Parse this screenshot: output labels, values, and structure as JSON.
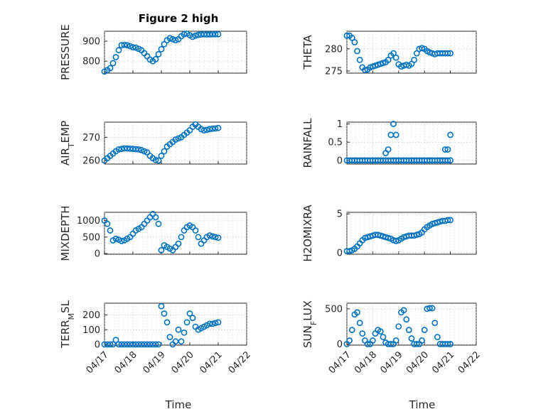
{
  "figure": {
    "title": "Figure 2 high",
    "xlabel": "Time",
    "marker_color": "#0072bd"
  },
  "chart_data": [
    {
      "name": "pressure",
      "type": "scatter",
      "ylabel": "PRESSURE",
      "ylim": [
        740,
        950
      ],
      "yticks": [
        800,
        900
      ],
      "xlim": [
        0,
        5
      ],
      "xticks": [
        "04/17",
        "04/18",
        "04/19",
        "04/20",
        "04/21",
        "04/22"
      ],
      "x": [
        0,
        0.1,
        0.2,
        0.3,
        0.4,
        0.5,
        0.6,
        0.7,
        0.8,
        0.9,
        1.0,
        1.1,
        1.2,
        1.3,
        1.4,
        1.5,
        1.6,
        1.7,
        1.8,
        1.9,
        2.0,
        2.1,
        2.2,
        2.3,
        2.4,
        2.5,
        2.6,
        2.7,
        2.8,
        2.9,
        3.0,
        3.1,
        3.2,
        3.3,
        3.4,
        3.5,
        3.6,
        3.7,
        3.8,
        3.9,
        4.0
      ],
      "y": [
        748,
        755,
        765,
        790,
        820,
        855,
        880,
        882,
        880,
        875,
        870,
        868,
        862,
        855,
        840,
        825,
        808,
        800,
        810,
        835,
        860,
        885,
        905,
        915,
        910,
        905,
        910,
        925,
        935,
        938,
        930,
        922,
        928,
        932,
        934,
        935,
        934,
        934,
        935,
        935,
        935
      ]
    },
    {
      "name": "theta",
      "type": "scatter",
      "ylabel": "THETA",
      "ylim": [
        274.5,
        284
      ],
      "yticks": [
        275,
        280
      ],
      "xlim": [
        0,
        5
      ],
      "xticks": [
        "04/17",
        "04/18",
        "04/19",
        "04/20",
        "04/21",
        "04/22"
      ],
      "x": [
        0,
        0.1,
        0.2,
        0.3,
        0.4,
        0.5,
        0.6,
        0.7,
        0.8,
        0.9,
        1.0,
        1.1,
        1.2,
        1.3,
        1.4,
        1.5,
        1.6,
        1.7,
        1.8,
        1.9,
        2.0,
        2.1,
        2.2,
        2.3,
        2.4,
        2.5,
        2.6,
        2.7,
        2.8,
        2.9,
        3.0,
        3.1,
        3.2,
        3.3,
        3.4,
        3.5,
        3.6,
        3.7,
        3.8,
        3.9,
        4.0
      ],
      "y": [
        283,
        283,
        282.5,
        281.5,
        279.5,
        277.5,
        275.8,
        275.2,
        275.3,
        275.8,
        276,
        276.2,
        276.4,
        276.6,
        276.8,
        277,
        277.5,
        278.5,
        279,
        278,
        276.5,
        276,
        276.2,
        276.4,
        276.2,
        276.6,
        277.5,
        279,
        280,
        280.2,
        280,
        279.5,
        279.2,
        279,
        278.8,
        279,
        279,
        279,
        279,
        279,
        279
      ]
    },
    {
      "name": "air_temp",
      "type": "scatter",
      "ylabel": "AIR_TEMP",
      "ylim": [
        258.5,
        276.5
      ],
      "yticks": [
        260,
        270
      ],
      "xlim": [
        0,
        5
      ],
      "xticks": [
        "04/17",
        "04/18",
        "04/19",
        "04/20",
        "04/21",
        "04/22"
      ],
      "x": [
        0,
        0.1,
        0.2,
        0.3,
        0.4,
        0.5,
        0.6,
        0.7,
        0.8,
        0.9,
        1.0,
        1.1,
        1.2,
        1.3,
        1.4,
        1.5,
        1.6,
        1.7,
        1.8,
        1.9,
        2.0,
        2.1,
        2.2,
        2.3,
        2.4,
        2.5,
        2.6,
        2.7,
        2.8,
        2.9,
        3.0,
        3.1,
        3.2,
        3.3,
        3.4,
        3.5,
        3.6,
        3.7,
        3.8,
        3.9,
        4.0
      ],
      "y": [
        260,
        261,
        262,
        263,
        264,
        264.8,
        265,
        265.2,
        265.2,
        265.1,
        265,
        264.9,
        264.8,
        264.5,
        264,
        263.5,
        262,
        261,
        260.2,
        260,
        262,
        264,
        266,
        267,
        268,
        269,
        269.5,
        270,
        271,
        272,
        273,
        274.5,
        275.5,
        274.5,
        273.5,
        273,
        273.2,
        273.5,
        273.7,
        273.8,
        274
      ]
    },
    {
      "name": "rainfall",
      "type": "scatter",
      "ylabel": "RAINFALL",
      "ylim": [
        -0.1,
        1.05
      ],
      "yticks": [
        0,
        0.5,
        1
      ],
      "xlim": [
        0,
        5
      ],
      "xticks": [
        "04/17",
        "04/18",
        "04/19",
        "04/20",
        "04/21",
        "04/22"
      ],
      "x": [
        0,
        0.1,
        0.2,
        0.3,
        0.4,
        0.5,
        0.6,
        0.7,
        0.8,
        0.9,
        1.0,
        1.1,
        1.2,
        1.3,
        1.4,
        1.5,
        1.6,
        1.7,
        1.8,
        1.9,
        2.0,
        2.1,
        2.2,
        2.3,
        2.4,
        2.5,
        2.6,
        2.7,
        2.8,
        2.9,
        3.0,
        3.1,
        3.2,
        3.3,
        3.4,
        3.5,
        3.6,
        3.7,
        3.8,
        3.9,
        4.0,
        1.5,
        1.6,
        1.7,
        1.8,
        1.9,
        3.8,
        3.9,
        4.0
      ],
      "y": [
        0,
        0,
        0,
        0,
        0,
        0,
        0,
        0,
        0,
        0,
        0,
        0,
        0,
        0,
        0,
        0,
        0,
        0,
        0,
        0,
        0,
        0,
        0,
        0,
        0,
        0,
        0,
        0,
        0,
        0,
        0,
        0,
        0,
        0,
        0,
        0,
        0,
        0,
        0,
        0,
        0,
        0.2,
        0.3,
        0.7,
        1.0,
        0.7,
        0.3,
        0.3,
        0.7
      ]
    },
    {
      "name": "mixdepth",
      "type": "scatter",
      "ylabel": "MIXDEPTH",
      "ylim": [
        -20,
        1250
      ],
      "yticks": [
        0,
        500,
        1000
      ],
      "xlim": [
        0,
        5
      ],
      "xticks": [
        "04/17",
        "04/18",
        "04/19",
        "04/20",
        "04/21",
        "04/22"
      ],
      "x": [
        0,
        0.1,
        0.2,
        0.3,
        0.4,
        0.5,
        0.6,
        0.7,
        0.8,
        0.9,
        1.0,
        1.1,
        1.2,
        1.3,
        1.4,
        1.5,
        1.6,
        1.7,
        1.8,
        1.9,
        2.0,
        2.1,
        2.2,
        2.3,
        2.4,
        2.5,
        2.6,
        2.7,
        2.8,
        2.9,
        3.0,
        3.1,
        3.2,
        3.3,
        3.4,
        3.5,
        3.6,
        3.7,
        3.8,
        3.9,
        4.0
      ],
      "y": [
        1000,
        900,
        700,
        400,
        450,
        420,
        380,
        400,
        450,
        500,
        600,
        700,
        750,
        800,
        900,
        1000,
        1100,
        1200,
        1100,
        900,
        100,
        250,
        200,
        150,
        100,
        200,
        300,
        500,
        700,
        800,
        850,
        800,
        700,
        500,
        300,
        400,
        500,
        550,
        520,
        500,
        480
      ]
    },
    {
      "name": "h2omixra",
      "type": "scatter",
      "ylabel": "H2OMIXRA",
      "ylim": [
        -0.2,
        5.2
      ],
      "yticks": [
        0,
        5
      ],
      "xlim": [
        0,
        5
      ],
      "xticks": [
        "04/17",
        "04/18",
        "04/19",
        "04/20",
        "04/21",
        "04/22"
      ],
      "x": [
        0,
        0.1,
        0.2,
        0.3,
        0.4,
        0.5,
        0.6,
        0.7,
        0.8,
        0.9,
        1.0,
        1.1,
        1.2,
        1.3,
        1.4,
        1.5,
        1.6,
        1.7,
        1.8,
        1.9,
        2.0,
        2.1,
        2.2,
        2.3,
        2.4,
        2.5,
        2.6,
        2.7,
        2.8,
        2.9,
        3.0,
        3.1,
        3.2,
        3.3,
        3.4,
        3.5,
        3.6,
        3.7,
        3.8,
        3.9,
        4.0
      ],
      "y": [
        0.2,
        0.2,
        0.3,
        0.5,
        0.8,
        1.2,
        1.6,
        1.9,
        2.0,
        2.1,
        2.2,
        2.3,
        2.3,
        2.2,
        2.1,
        2.0,
        1.9,
        1.8,
        1.6,
        1.5,
        1.6,
        1.8,
        2.0,
        2.1,
        2.2,
        2.2,
        2.2,
        2.3,
        2.4,
        2.6,
        3.0,
        3.3,
        3.5,
        3.7,
        3.8,
        3.9,
        4.0,
        4.1,
        4.1,
        4.2,
        4.2
      ]
    },
    {
      "name": "terr_msl",
      "type": "scatter",
      "ylabel": "TERR_MSL",
      "ylim": [
        -5,
        280
      ],
      "yticks": [
        0,
        100,
        200
      ],
      "xlim": [
        0,
        5
      ],
      "xticks": [
        "04/17",
        "04/18",
        "04/19",
        "04/20",
        "04/21",
        "04/22"
      ],
      "x": [
        0,
        0.1,
        0.2,
        0.3,
        0.4,
        0.5,
        0.6,
        0.7,
        0.8,
        0.9,
        1.0,
        1.1,
        1.2,
        1.3,
        1.4,
        1.5,
        1.6,
        1.7,
        1.8,
        1.9,
        2.0,
        2.1,
        2.2,
        2.3,
        2.4,
        2.5,
        2.6,
        2.7,
        2.8,
        2.9,
        3.0,
        3.1,
        3.2,
        3.3,
        3.4,
        3.5,
        3.6,
        3.7,
        3.8,
        3.9,
        4.0
      ],
      "y": [
        0,
        0,
        0,
        0,
        30,
        0,
        0,
        0,
        0,
        0,
        0,
        0,
        0,
        0,
        0,
        0,
        0,
        0,
        0,
        0,
        260,
        210,
        150,
        50,
        0,
        20,
        100,
        20,
        80,
        150,
        210,
        180,
        120,
        100,
        110,
        120,
        130,
        140,
        140,
        145,
        150
      ]
    },
    {
      "name": "sun_flux",
      "type": "scatter",
      "ylabel": "SUN_FLUX",
      "ylim": [
        -15,
        580
      ],
      "yticks": [
        0,
        500
      ],
      "xlim": [
        0,
        5
      ],
      "xticks": [
        "04/17",
        "04/18",
        "04/19",
        "04/20",
        "04/21",
        "04/22"
      ],
      "x": [
        0,
        0.1,
        0.2,
        0.3,
        0.4,
        0.5,
        0.6,
        0.7,
        0.8,
        0.9,
        1.0,
        1.1,
        1.2,
        1.3,
        1.4,
        1.5,
        1.6,
        1.7,
        1.8,
        1.9,
        2.0,
        2.1,
        2.2,
        2.3,
        2.4,
        2.5,
        2.6,
        2.7,
        2.8,
        2.9,
        3.0,
        3.1,
        3.2,
        3.3,
        3.4,
        3.5,
        3.6,
        3.7,
        3.8,
        3.9,
        4.0
      ],
      "y": [
        0,
        50,
        200,
        420,
        450,
        300,
        150,
        50,
        0,
        0,
        50,
        150,
        200,
        180,
        100,
        20,
        0,
        0,
        0,
        50,
        250,
        450,
        480,
        350,
        200,
        80,
        0,
        0,
        0,
        50,
        200,
        500,
        510,
        510,
        300,
        100,
        0,
        0,
        0,
        0,
        0
      ]
    }
  ]
}
